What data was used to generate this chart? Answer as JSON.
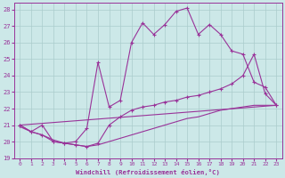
{
  "xlabel": "Windchill (Refroidissement éolien,°C)",
  "background_color": "#cce8e8",
  "line_color": "#993399",
  "grid_color": "#aacccc",
  "xlim": [
    -0.5,
    23.5
  ],
  "ylim": [
    19,
    28.4
  ],
  "yticks": [
    19,
    20,
    21,
    22,
    23,
    24,
    25,
    26,
    27,
    28
  ],
  "xticks": [
    0,
    1,
    2,
    3,
    4,
    5,
    6,
    7,
    8,
    9,
    10,
    11,
    12,
    13,
    14,
    15,
    16,
    17,
    18,
    19,
    20,
    21,
    22,
    23
  ],
  "curve1_x": [
    0,
    1,
    2,
    3,
    4,
    5,
    6,
    7,
    8,
    9,
    10,
    11,
    12,
    13,
    14,
    15,
    16,
    17,
    18,
    19,
    20,
    21,
    22,
    23
  ],
  "curve1_y": [
    20.9,
    20.6,
    20.4,
    20.1,
    19.9,
    19.8,
    19.7,
    19.8,
    20.0,
    20.2,
    20.4,
    20.6,
    20.8,
    21.0,
    21.2,
    21.4,
    21.5,
    21.7,
    21.9,
    22.0,
    22.1,
    22.2,
    22.2,
    22.2
  ],
  "curve2_x": [
    0,
    1,
    2,
    3,
    4,
    5,
    6,
    7,
    8,
    9,
    10,
    11,
    12,
    13,
    14,
    15,
    16,
    17,
    18,
    19,
    20,
    21,
    22,
    23
  ],
  "curve2_y": [
    21.0,
    20.6,
    20.4,
    20.0,
    19.9,
    19.8,
    19.7,
    19.9,
    21.0,
    21.5,
    21.9,
    22.1,
    22.2,
    22.4,
    22.5,
    22.7,
    22.8,
    23.0,
    23.2,
    23.5,
    24.0,
    25.3,
    22.9,
    22.2
  ],
  "curve3_x": [
    0,
    1,
    2,
    3,
    4,
    5,
    6,
    7,
    8,
    9,
    10,
    11,
    12,
    13,
    14,
    15,
    16,
    17,
    18,
    19,
    20,
    21,
    22,
    23
  ],
  "curve3_y": [
    21.0,
    20.6,
    21.0,
    20.0,
    19.9,
    20.0,
    20.8,
    24.8,
    22.1,
    22.5,
    26.0,
    27.2,
    26.5,
    27.1,
    27.9,
    28.1,
    26.5,
    27.1,
    26.5,
    25.5,
    25.3,
    23.6,
    23.3,
    22.2
  ],
  "curve4_x": [
    0,
    23
  ],
  "curve4_y": [
    21.0,
    22.2
  ]
}
